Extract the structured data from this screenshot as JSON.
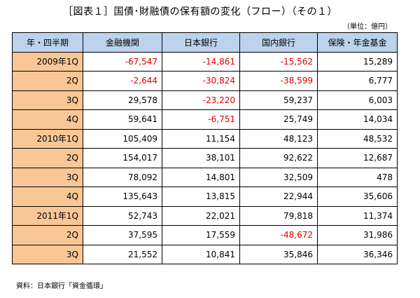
{
  "title": "［図表１］国債･財融債の保有額の変化（フロー）（その１）",
  "unit": "（単位：億円）",
  "headers": [
    "年・四半期",
    "金融機関",
    "日本銀行",
    "国内銀行",
    "保険・年金基金"
  ],
  "rows": [
    {
      "period": "2009年1Q",
      "values": [
        "-67,547",
        "-14,861",
        "-15,562",
        "15,289"
      ]
    },
    {
      "period": "2Q",
      "values": [
        "-2,644",
        "-30,824",
        "-38,599",
        "6,777"
      ]
    },
    {
      "period": "3Q",
      "values": [
        "29,578",
        "-23,220",
        "59,237",
        "6,003"
      ]
    },
    {
      "period": "4Q",
      "values": [
        "59,641",
        "-6,751",
        "25,749",
        "14,034"
      ]
    },
    {
      "period": "2010年1Q",
      "values": [
        "105,409",
        "11,154",
        "48,123",
        "48,532"
      ]
    },
    {
      "period": "2Q",
      "values": [
        "154,017",
        "38,101",
        "92,622",
        "12,687"
      ]
    },
    {
      "period": "3Q",
      "values": [
        "78,092",
        "14,801",
        "32,509",
        "478"
      ]
    },
    {
      "period": "4Q",
      "values": [
        "135,643",
        "13,815",
        "22,944",
        "35,606"
      ]
    },
    {
      "period": "2011年1Q",
      "values": [
        "52,743",
        "22,021",
        "79,818",
        "11,374"
      ]
    },
    {
      "period": "2Q",
      "values": [
        "37,595",
        "17,559",
        "-48,672",
        "31,986"
      ]
    },
    {
      "period": "3Q",
      "values": [
        "21,552",
        "10,841",
        "35,846",
        "36,346"
      ]
    }
  ],
  "source": "資料：日本銀行「資金循環」",
  "colors": {
    "header_bg": "#bcd3ee",
    "period_bg": "#f9c796",
    "negative": "#e00000"
  }
}
